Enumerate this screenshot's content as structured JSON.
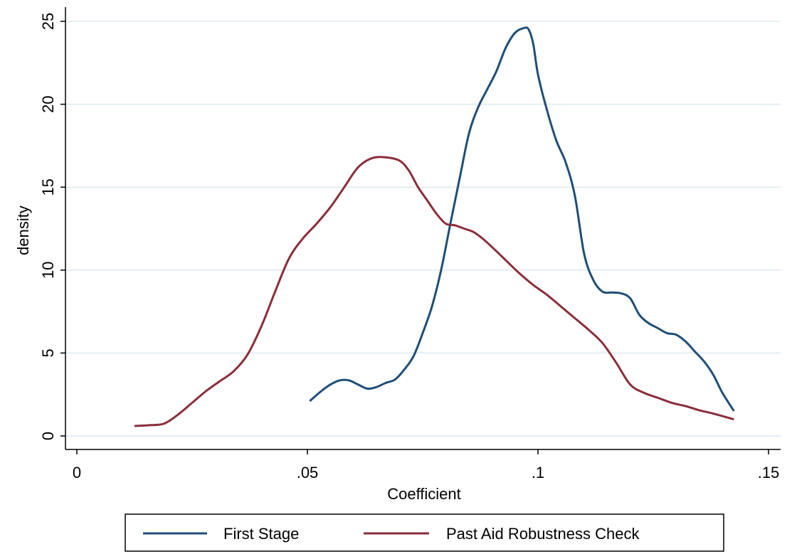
{
  "chart_data": {
    "type": "line",
    "title": "",
    "xlabel": "Coefficient",
    "ylabel": "density",
    "xlim": [
      0,
      0.15
    ],
    "ylim": [
      0,
      25
    ],
    "x_ticks": [
      0,
      0.05,
      0.1,
      0.15
    ],
    "x_tick_labels": [
      "0",
      ".05",
      ".1",
      ".15"
    ],
    "y_ticks": [
      0,
      5,
      10,
      15,
      20,
      25
    ],
    "y_tick_labels": [
      "0",
      "5",
      "10",
      "15",
      "20",
      "25"
    ],
    "grid": true,
    "legend_position": "bottom",
    "series": [
      {
        "name": "First Stage",
        "color": "#1f4e79",
        "x": [
          0.0505,
          0.053,
          0.055,
          0.057,
          0.059,
          0.061,
          0.063,
          0.065,
          0.067,
          0.069,
          0.071,
          0.073,
          0.075,
          0.077,
          0.079,
          0.081,
          0.083,
          0.085,
          0.087,
          0.089,
          0.091,
          0.093,
          0.095,
          0.097,
          0.098,
          0.099,
          0.1,
          0.102,
          0.104,
          0.106,
          0.108,
          0.11,
          0.112,
          0.114,
          0.116,
          0.118,
          0.12,
          0.122,
          0.124,
          0.126,
          0.128,
          0.13,
          0.132,
          0.134,
          0.136,
          0.138,
          0.14,
          0.1425
        ],
        "y": [
          2.1,
          2.7,
          3.1,
          3.35,
          3.35,
          3.1,
          2.85,
          2.95,
          3.2,
          3.4,
          4.0,
          4.8,
          6.2,
          7.8,
          10.0,
          12.8,
          15.5,
          18.2,
          19.8,
          20.9,
          22.0,
          23.4,
          24.3,
          24.6,
          24.5,
          23.6,
          21.8,
          19.6,
          17.8,
          16.5,
          14.5,
          11.0,
          9.4,
          8.7,
          8.65,
          8.6,
          8.3,
          7.3,
          6.8,
          6.5,
          6.2,
          6.1,
          5.7,
          5.1,
          4.5,
          3.7,
          2.6,
          1.5
        ]
      },
      {
        "name": "Past Aid Robustness Check",
        "color": "#8b2e3a",
        "x": [
          0.0125,
          0.016,
          0.019,
          0.022,
          0.025,
          0.028,
          0.031,
          0.034,
          0.037,
          0.04,
          0.043,
          0.046,
          0.049,
          0.052,
          0.055,
          0.058,
          0.061,
          0.064,
          0.067,
          0.07,
          0.072,
          0.074,
          0.076,
          0.078,
          0.08,
          0.082,
          0.084,
          0.086,
          0.088,
          0.09,
          0.093,
          0.096,
          0.099,
          0.102,
          0.105,
          0.108,
          0.111,
          0.114,
          0.117,
          0.12,
          0.123,
          0.126,
          0.129,
          0.132,
          0.135,
          0.138,
          0.1425
        ],
        "y": [
          0.6,
          0.65,
          0.75,
          1.3,
          2.0,
          2.7,
          3.3,
          3.9,
          4.9,
          6.6,
          8.7,
          10.7,
          11.9,
          12.8,
          13.8,
          15.0,
          16.2,
          16.75,
          16.8,
          16.6,
          16.0,
          15.0,
          14.2,
          13.4,
          12.8,
          12.7,
          12.5,
          12.3,
          11.9,
          11.4,
          10.6,
          9.8,
          9.1,
          8.5,
          7.8,
          7.1,
          6.4,
          5.6,
          4.4,
          3.1,
          2.6,
          2.3,
          2.0,
          1.8,
          1.55,
          1.35,
          1.0
        ]
      }
    ]
  }
}
